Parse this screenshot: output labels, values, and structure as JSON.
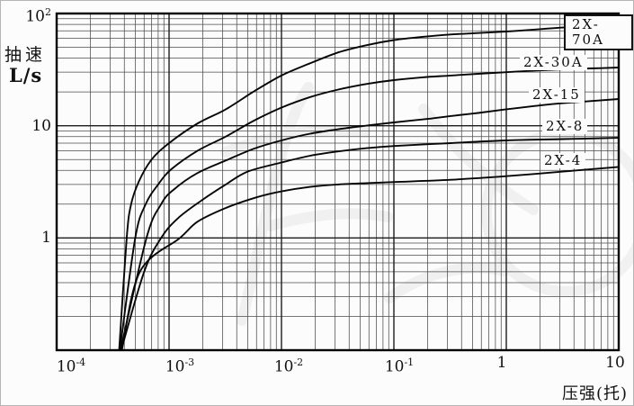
{
  "y_axis": {
    "title_line1": "抽速",
    "title_line2": "L/s",
    "ticks": [
      {
        "base": "10",
        "exp": "2"
      },
      {
        "base": "10",
        "exp": ""
      },
      {
        "base": "1",
        "exp": ""
      }
    ]
  },
  "x_axis": {
    "title": "压强(托)",
    "ticks": [
      {
        "base": "10",
        "exp": "-4"
      },
      {
        "base": "10",
        "exp": "-3"
      },
      {
        "base": "10",
        "exp": "-2"
      },
      {
        "base": "10",
        "exp": "-1"
      },
      {
        "base": "1",
        "exp": ""
      },
      {
        "base": "10",
        "exp": ""
      }
    ]
  },
  "chart_data": {
    "type": "line",
    "title": "",
    "xlabel": "压强(托)",
    "ylabel": "抽速 L/s",
    "x_scale": "log",
    "y_scale": "log",
    "xlim": [
      0.0001,
      10
    ],
    "ylim": [
      0.1,
      100
    ],
    "grid": "full log-log grid with minor lines at 2-9 of each decade",
    "legend": "labels written on curves, topmost label boxed",
    "x_unit": "torr",
    "y_unit": "L/s",
    "series": [
      {
        "name": "2X-70A",
        "boxed_label": true,
        "points": [
          [
            0.00036,
            0.1
          ],
          [
            0.00042,
            1
          ],
          [
            0.00046,
            2
          ],
          [
            0.00054,
            3.2
          ],
          [
            0.0007,
            5
          ],
          [
            0.001,
            7
          ],
          [
            0.0018,
            10.5
          ],
          [
            0.0032,
            14
          ],
          [
            0.0056,
            20
          ],
          [
            0.01,
            28
          ],
          [
            0.018,
            36
          ],
          [
            0.032,
            45
          ],
          [
            0.056,
            52
          ],
          [
            0.1,
            58
          ],
          [
            0.18,
            62
          ],
          [
            0.32,
            65
          ],
          [
            0.56,
            67
          ],
          [
            1,
            69
          ],
          [
            1.8,
            72
          ],
          [
            3.2,
            75
          ],
          [
            5.6,
            77
          ],
          [
            10,
            79
          ]
        ]
      },
      {
        "name": "2X-30A",
        "boxed_label": false,
        "points": [
          [
            0.000365,
            0.1
          ],
          [
            0.0005,
            1
          ],
          [
            0.00062,
            2
          ],
          [
            0.0008,
            3
          ],
          [
            0.00105,
            4.1
          ],
          [
            0.0018,
            6
          ],
          [
            0.0032,
            8
          ],
          [
            0.0056,
            11
          ],
          [
            0.01,
            14.5
          ],
          [
            0.018,
            18
          ],
          [
            0.032,
            21
          ],
          [
            0.056,
            23.5
          ],
          [
            0.1,
            25.5
          ],
          [
            0.18,
            27
          ],
          [
            0.32,
            28
          ],
          [
            0.56,
            29
          ],
          [
            1,
            30
          ],
          [
            1.8,
            31
          ],
          [
            3.2,
            31.8
          ],
          [
            5.6,
            32.4
          ],
          [
            10,
            33
          ]
        ]
      },
      {
        "name": "2X-15",
        "boxed_label": false,
        "points": [
          [
            0.00037,
            0.1
          ],
          [
            0.00063,
            1
          ],
          [
            0.00085,
            2
          ],
          [
            0.0011,
            2.7
          ],
          [
            0.0018,
            3.8
          ],
          [
            0.0032,
            4.9
          ],
          [
            0.0056,
            6.2
          ],
          [
            0.01,
            7.4
          ],
          [
            0.018,
            8.5
          ],
          [
            0.032,
            9.3
          ],
          [
            0.056,
            10
          ],
          [
            0.1,
            10.7
          ],
          [
            0.2,
            11.5
          ],
          [
            0.32,
            12.2
          ],
          [
            0.56,
            13
          ],
          [
            1,
            14
          ],
          [
            1.8,
            15
          ],
          [
            3.2,
            15.9
          ],
          [
            10,
            17.3
          ]
        ]
      },
      {
        "name": "2X-8",
        "boxed_label": false,
        "points": [
          [
            0.000375,
            0.1
          ],
          [
            0.0006,
            0.5
          ],
          [
            0.00085,
            1
          ],
          [
            0.0012,
            1.5
          ],
          [
            0.002,
            2.2
          ],
          [
            0.0032,
            3
          ],
          [
            0.005,
            3.9
          ],
          [
            0.01,
            4.7
          ],
          [
            0.018,
            5.4
          ],
          [
            0.032,
            5.9
          ],
          [
            0.056,
            6.3
          ],
          [
            0.1,
            6.6
          ],
          [
            0.32,
            7
          ],
          [
            1,
            7.4
          ],
          [
            3.2,
            7.6
          ],
          [
            10,
            7.8
          ]
        ]
      },
      {
        "name": "2X-4",
        "boxed_label": false,
        "points": [
          [
            0.00038,
            0.1
          ],
          [
            0.00055,
            0.5
          ],
          [
            0.00125,
            1
          ],
          [
            0.0018,
            1.4
          ],
          [
            0.0032,
            1.85
          ],
          [
            0.006,
            2.3
          ],
          [
            0.01,
            2.6
          ],
          [
            0.018,
            2.85
          ],
          [
            0.032,
            3
          ],
          [
            0.1,
            3.15
          ],
          [
            0.32,
            3.3
          ],
          [
            1,
            3.55
          ],
          [
            3.2,
            3.9
          ],
          [
            10,
            4.3
          ]
        ]
      }
    ]
  }
}
